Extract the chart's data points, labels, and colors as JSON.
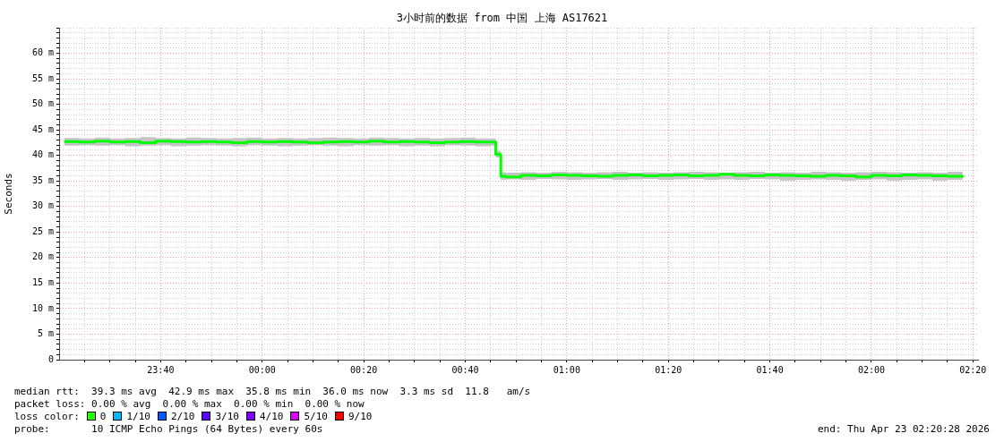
{
  "chart_data": {
    "type": "step",
    "title": "3小时前的数据 from 中国 上海 AS17621",
    "ylabel": "Seconds",
    "x": [
      "2026-04-22T23:21",
      "2026-04-22T23:24",
      "2026-04-22T23:27",
      "2026-04-22T23:30",
      "2026-04-22T23:33",
      "2026-04-22T23:36",
      "2026-04-22T23:39",
      "2026-04-22T23:42",
      "2026-04-22T23:45",
      "2026-04-22T23:48",
      "2026-04-22T23:51",
      "2026-04-22T23:54",
      "2026-04-22T23:57",
      "2026-04-23T00:00",
      "2026-04-23T00:03",
      "2026-04-23T00:06",
      "2026-04-23T00:09",
      "2026-04-23T00:12",
      "2026-04-23T00:15",
      "2026-04-23T00:18",
      "2026-04-23T00:21",
      "2026-04-23T00:24",
      "2026-04-23T00:27",
      "2026-04-23T00:30",
      "2026-04-23T00:33",
      "2026-04-23T00:36",
      "2026-04-23T00:39",
      "2026-04-23T00:42",
      "2026-04-23T00:45",
      "2026-04-23T00:46",
      "2026-04-23T00:47",
      "2026-04-23T00:48",
      "2026-04-23T00:51",
      "2026-04-23T00:54",
      "2026-04-23T00:57",
      "2026-04-23T01:00",
      "2026-04-23T01:03",
      "2026-04-23T01:06",
      "2026-04-23T01:09",
      "2026-04-23T01:12",
      "2026-04-23T01:15",
      "2026-04-23T01:18",
      "2026-04-23T01:21",
      "2026-04-23T01:24",
      "2026-04-23T01:27",
      "2026-04-23T01:30",
      "2026-04-23T01:33",
      "2026-04-23T01:36",
      "2026-04-23T01:39",
      "2026-04-23T01:42",
      "2026-04-23T01:45",
      "2026-04-23T01:48",
      "2026-04-23T01:51",
      "2026-04-23T01:54",
      "2026-04-23T01:57",
      "2026-04-23T02:00",
      "2026-04-23T02:03",
      "2026-04-23T02:06",
      "2026-04-23T02:09",
      "2026-04-23T02:12",
      "2026-04-23T02:15",
      "2026-04-23T02:18"
    ],
    "series": [
      {
        "color": "#00ff00",
        "values": [
          42.7,
          42.6,
          42.8,
          42.6,
          42.7,
          42.5,
          42.8,
          42.7,
          42.6,
          42.7,
          42.6,
          42.5,
          42.7,
          42.6,
          42.7,
          42.6,
          42.5,
          42.6,
          42.7,
          42.6,
          42.8,
          42.6,
          42.7,
          42.6,
          42.5,
          42.6,
          42.7,
          42.6,
          42.6,
          40.2,
          35.9,
          35.8,
          36.1,
          36.0,
          36.2,
          36.1,
          36.0,
          35.9,
          36.1,
          36.2,
          36.0,
          36.1,
          36.2,
          36.0,
          36.1,
          36.3,
          36.1,
          36.0,
          36.2,
          36.1,
          36.0,
          35.9,
          36.1,
          36.0,
          35.8,
          36.1,
          36.0,
          36.2,
          36.1,
          36.0,
          35.9,
          36.1
        ],
        "lower": [
          41.9,
          42.0,
          41.9,
          42.0,
          41.8,
          41.9,
          42.0,
          41.8,
          41.9,
          42.0,
          41.9,
          41.8,
          42.0,
          41.9,
          41.8,
          41.9,
          42.0,
          41.9,
          41.8,
          42.0,
          41.9,
          42.0,
          41.8,
          41.9,
          41.8,
          42.0,
          41.9,
          41.8,
          41.9,
          39.6,
          35.2,
          35.3,
          35.2,
          35.4,
          35.3,
          35.2,
          35.3,
          35.4,
          35.2,
          35.3,
          35.4,
          35.2,
          35.3,
          35.4,
          35.2,
          35.3,
          35.2,
          35.4,
          35.3,
          35.1,
          35.2,
          35.3,
          35.2,
          35.1,
          35.2,
          35.3,
          35.1,
          35.2,
          35.3,
          35.1,
          35.2,
          35.3
        ],
        "upper": [
          43.4,
          43.3,
          43.5,
          43.3,
          43.4,
          43.6,
          43.4,
          43.3,
          43.5,
          43.4,
          43.3,
          43.4,
          43.5,
          43.3,
          43.4,
          43.3,
          43.4,
          43.5,
          43.4,
          43.3,
          43.5,
          43.4,
          43.3,
          43.4,
          43.3,
          43.4,
          43.5,
          43.3,
          43.3,
          40.9,
          36.7,
          36.6,
          36.7,
          36.6,
          36.8,
          36.7,
          36.6,
          36.7,
          36.8,
          36.6,
          36.7,
          36.6,
          36.7,
          36.8,
          36.7,
          36.6,
          36.7,
          36.8,
          36.6,
          36.7,
          36.6,
          36.8,
          36.7,
          36.6,
          36.7,
          36.8,
          36.7,
          36.6,
          36.7,
          36.6,
          36.8,
          36.7
        ]
      }
    ],
    "xlim": [
      "2026-04-22T23:20",
      "2026-04-23T02:21"
    ],
    "xticks": [
      {
        "value": "2026-04-22T23:25",
        "label": null
      },
      {
        "value": "2026-04-22T23:30",
        "label": null
      },
      {
        "value": "2026-04-22T23:35",
        "label": null
      },
      {
        "value": "2026-04-22T23:40",
        "label": "23:40"
      },
      {
        "value": "2026-04-22T23:45",
        "label": null
      },
      {
        "value": "2026-04-22T23:50",
        "label": null
      },
      {
        "value": "2026-04-22T23:55",
        "label": null
      },
      {
        "value": "2026-04-23T00:00",
        "label": "00:00"
      },
      {
        "value": "2026-04-23T00:05",
        "label": null
      },
      {
        "value": "2026-04-23T00:10",
        "label": null
      },
      {
        "value": "2026-04-23T00:15",
        "label": null
      },
      {
        "value": "2026-04-23T00:20",
        "label": "00:20"
      },
      {
        "value": "2026-04-23T00:25",
        "label": null
      },
      {
        "value": "2026-04-23T00:30",
        "label": null
      },
      {
        "value": "2026-04-23T00:35",
        "label": null
      },
      {
        "value": "2026-04-23T00:40",
        "label": "00:40"
      },
      {
        "value": "2026-04-23T00:45",
        "label": null
      },
      {
        "value": "2026-04-23T00:50",
        "label": null
      },
      {
        "value": "2026-04-23T00:55",
        "label": null
      },
      {
        "value": "2026-04-23T01:00",
        "label": "01:00"
      },
      {
        "value": "2026-04-23T01:05",
        "label": null
      },
      {
        "value": "2026-04-23T01:10",
        "label": null
      },
      {
        "value": "2026-04-23T01:15",
        "label": null
      },
      {
        "value": "2026-04-23T01:20",
        "label": "01:20"
      },
      {
        "value": "2026-04-23T01:25",
        "label": null
      },
      {
        "value": "2026-04-23T01:30",
        "label": null
      },
      {
        "value": "2026-04-23T01:35",
        "label": null
      },
      {
        "value": "2026-04-23T01:40",
        "label": "01:40"
      },
      {
        "value": "2026-04-23T01:45",
        "label": null
      },
      {
        "value": "2026-04-23T01:50",
        "label": null
      },
      {
        "value": "2026-04-23T01:55",
        "label": null
      },
      {
        "value": "2026-04-23T02:00",
        "label": "02:00"
      },
      {
        "value": "2026-04-23T02:05",
        "label": null
      },
      {
        "value": "2026-04-23T02:10",
        "label": null
      },
      {
        "value": "2026-04-23T02:15",
        "label": null
      },
      {
        "value": "2026-04-23T02:20",
        "label": "02:20"
      }
    ],
    "ylim": [
      0,
      65
    ],
    "yticks": [
      {
        "value": 0,
        "label": "0"
      },
      {
        "value": 1,
        "label": null
      },
      {
        "value": 2,
        "label": null
      },
      {
        "value": 3,
        "label": null
      },
      {
        "value": 4,
        "label": null
      },
      {
        "value": 5,
        "label": "5 m"
      },
      {
        "value": 6,
        "label": null
      },
      {
        "value": 7,
        "label": null
      },
      {
        "value": 8,
        "label": null
      },
      {
        "value": 9,
        "label": null
      },
      {
        "value": 10,
        "label": "10 m"
      },
      {
        "value": 11,
        "label": null
      },
      {
        "value": 12,
        "label": null
      },
      {
        "value": 13,
        "label": null
      },
      {
        "value": 14,
        "label": null
      },
      {
        "value": 15,
        "label": "15 m"
      },
      {
        "value": 16,
        "label": null
      },
      {
        "value": 17,
        "label": null
      },
      {
        "value": 18,
        "label": null
      },
      {
        "value": 19,
        "label": null
      },
      {
        "value": 20,
        "label": "20 m"
      },
      {
        "value": 21,
        "label": null
      },
      {
        "value": 22,
        "label": null
      },
      {
        "value": 23,
        "label": null
      },
      {
        "value": 24,
        "label": null
      },
      {
        "value": 25,
        "label": "25 m"
      },
      {
        "value": 26,
        "label": null
      },
      {
        "value": 27,
        "label": null
      },
      {
        "value": 28,
        "label": null
      },
      {
        "value": 29,
        "label": null
      },
      {
        "value": 30,
        "label": "30 m"
      },
      {
        "value": 31,
        "label": null
      },
      {
        "value": 32,
        "label": null
      },
      {
        "value": 33,
        "label": null
      },
      {
        "value": 34,
        "label": null
      },
      {
        "value": 35,
        "label": "35 m"
      },
      {
        "value": 36,
        "label": null
      },
      {
        "value": 37,
        "label": null
      },
      {
        "value": 38,
        "label": null
      },
      {
        "value": 39,
        "label": null
      },
      {
        "value": 40,
        "label": "40 m"
      },
      {
        "value": 41,
        "label": null
      },
      {
        "value": 42,
        "label": null
      },
      {
        "value": 43,
        "label": null
      },
      {
        "value": 44,
        "label": null
      },
      {
        "value": 45,
        "label": "45 m"
      },
      {
        "value": 46,
        "label": null
      },
      {
        "value": 47,
        "label": null
      },
      {
        "value": 48,
        "label": null
      },
      {
        "value": 49,
        "label": null
      },
      {
        "value": 50,
        "label": "50 m"
      },
      {
        "value": 51,
        "label": null
      },
      {
        "value": 52,
        "label": null
      },
      {
        "value": 53,
        "label": null
      },
      {
        "value": 54,
        "label": null
      },
      {
        "value": 55,
        "label": "55 m"
      },
      {
        "value": 56,
        "label": null
      },
      {
        "value": 57,
        "label": null
      },
      {
        "value": 58,
        "label": null
      },
      {
        "value": 59,
        "label": null
      },
      {
        "value": 60,
        "label": "60 m"
      },
      {
        "value": 61,
        "label": null
      },
      {
        "value": 62,
        "label": null
      },
      {
        "value": 63,
        "label": null
      },
      {
        "value": 64,
        "label": null
      },
      {
        "value": 65,
        "label": null
      }
    ],
    "grid": true,
    "legend": false,
    "marker": "none",
    "annotations": [
      "median rtt:  39.3 ms avg  42.9 ms max  35.8 ms min  36.0 ms now  3.3 ms sd  11.8   am/s",
      "packet loss: 0.00 % avg  0.00 % max  0.00 % min  0.00 % now",
      "loss color:",
      "0",
      "1/10",
      "2/10",
      "3/10",
      "4/10",
      "5/10",
      "9/10",
      "probe:       10 ICMP Echo Pings (64 Bytes) every 60s",
      "end: Thu Apr 23 02:20:28 2026"
    ]
  }
}
